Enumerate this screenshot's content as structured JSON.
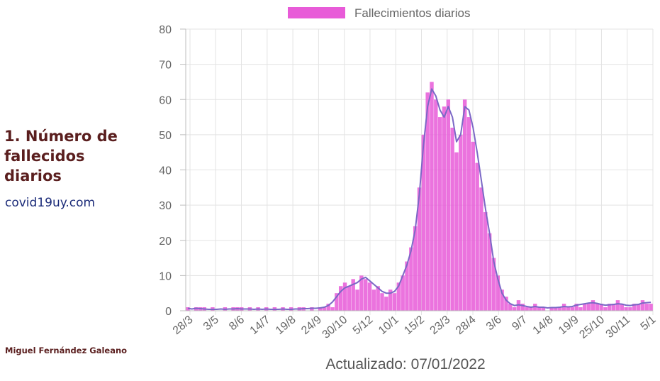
{
  "side_panel": {
    "title": "1. Número de fallecidos diarios",
    "source": "covid19uy.com",
    "author": "Miguel Fernández Galeano"
  },
  "updated_label": "Actualizado: 07/01/2022",
  "colors": {
    "bars": "#e85bd8",
    "average_line": "#7b68c6",
    "grid": "#e3e3e3",
    "title": "#5a1e1e",
    "link": "#1a2a78"
  },
  "chart_data": {
    "type": "bar",
    "title": "",
    "xlabel": "",
    "ylabel": "",
    "ylim": [
      0,
      80
    ],
    "y_ticks": [
      0,
      10,
      20,
      30,
      40,
      50,
      60,
      70,
      80
    ],
    "grid": true,
    "legend_position": "top",
    "x_tick_labels": [
      "28/3",
      "3/5",
      "8/6",
      "14/7",
      "19/8",
      "24/9",
      "30/10",
      "5/12",
      "10/1",
      "15/2",
      "23/3",
      "28/4",
      "3/6",
      "9/7",
      "14/8",
      "19/9",
      "25/10",
      "30/11",
      "5/1"
    ],
    "series": [
      {
        "name": "Fallecimientos diarios",
        "kind": "bar",
        "note": "daily values, approx. 6-day resolution read off the chart from 28/3/2020 to 7/1/2022",
        "values": [
          1,
          0,
          1,
          1,
          1,
          0,
          1,
          0,
          0,
          1,
          0,
          1,
          1,
          1,
          0,
          1,
          0,
          1,
          0,
          1,
          0,
          1,
          0,
          1,
          0,
          1,
          0,
          1,
          1,
          0,
          1,
          0,
          1,
          1,
          2,
          1,
          5,
          7,
          8,
          7,
          9,
          6,
          10,
          9,
          8,
          6,
          7,
          5,
          4,
          6,
          5,
          8,
          10,
          14,
          18,
          24,
          35,
          50,
          62,
          65,
          60,
          55,
          58,
          60,
          52,
          45,
          50,
          60,
          55,
          48,
          42,
          35,
          28,
          22,
          15,
          10,
          6,
          4,
          2,
          1,
          3,
          2,
          1,
          1,
          2,
          1,
          1,
          0,
          1,
          1,
          1,
          2,
          1,
          1,
          2,
          1,
          2,
          2,
          3,
          2,
          2,
          1,
          2,
          2,
          3,
          2,
          1,
          1,
          2,
          2,
          3,
          2,
          2
        ]
      },
      {
        "name": "",
        "kind": "line",
        "values": [
          0.7,
          0.5,
          0.7,
          0.6,
          0.5,
          0.4,
          0.4,
          0.4,
          0.5,
          0.4,
          0.5,
          0.5,
          0.6,
          0.5,
          0.5,
          0.5,
          0.4,
          0.5,
          0.4,
          0.5,
          0.4,
          0.4,
          0.4,
          0.5,
          0.4,
          0.4,
          0.5,
          0.5,
          0.6,
          0.6,
          0.7,
          0.7,
          0.8,
          1,
          1.5,
          2.5,
          4,
          5.5,
          6.5,
          7,
          7.5,
          8,
          9,
          9.5,
          8.5,
          7.5,
          6.5,
          5.5,
          5,
          5,
          5.5,
          7,
          10,
          13,
          17,
          23,
          33,
          47,
          58,
          63,
          61,
          57,
          55,
          58,
          55,
          48,
          50,
          58,
          57,
          52,
          45,
          37,
          29,
          22,
          14,
          9,
          5,
          3,
          2,
          1.5,
          1.7,
          1.5,
          1.2,
          1,
          1.2,
          1,
          1,
          0.8,
          0.9,
          0.9,
          1,
          1.2,
          1.1,
          1.2,
          1.6,
          1.8,
          2,
          2.2,
          2.3,
          2.1,
          1.8,
          1.6,
          1.7,
          1.8,
          2,
          1.9,
          1.6,
          1.5,
          1.7,
          1.8,
          2.2,
          2.3,
          2.4
        ]
      }
    ]
  }
}
